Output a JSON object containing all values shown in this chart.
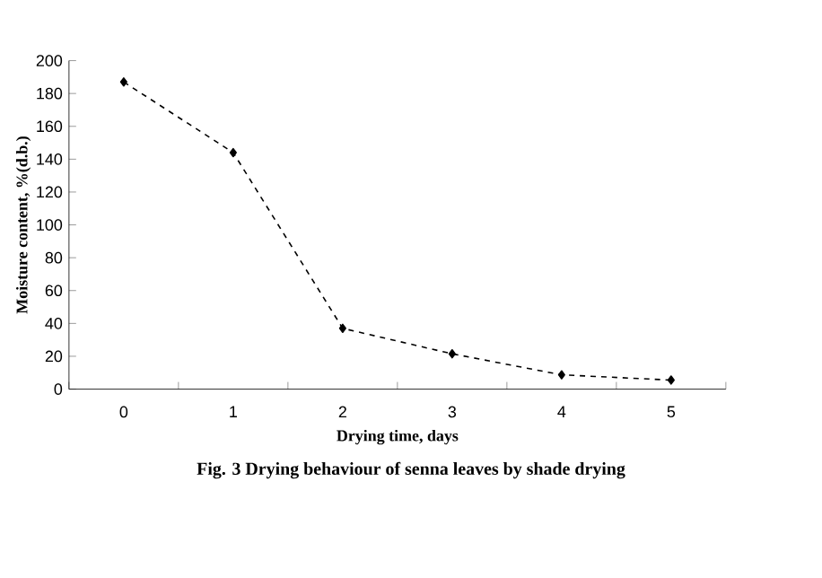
{
  "chart_data": {
    "type": "line",
    "xlabel": "Drying time, days",
    "ylabel": "Moisture content, %(d.b.)",
    "categories": [
      "0",
      "1",
      "2",
      "3",
      "4",
      "5"
    ],
    "series": [
      {
        "color": "#000000",
        "values": [
          187,
          144,
          37,
          21.5,
          8.7,
          5.5
        ]
      }
    ],
    "ylim": [
      0,
      200
    ],
    "yticks": [
      0,
      20,
      40,
      60,
      80,
      100,
      120,
      140,
      160,
      180,
      200
    ],
    "marker": "diamond",
    "line_style": "dashed",
    "grid": false,
    "legend": false,
    "annotations": [
      "Fig. 3 Drying behaviour of senna leaves by shade drying"
    ]
  }
}
